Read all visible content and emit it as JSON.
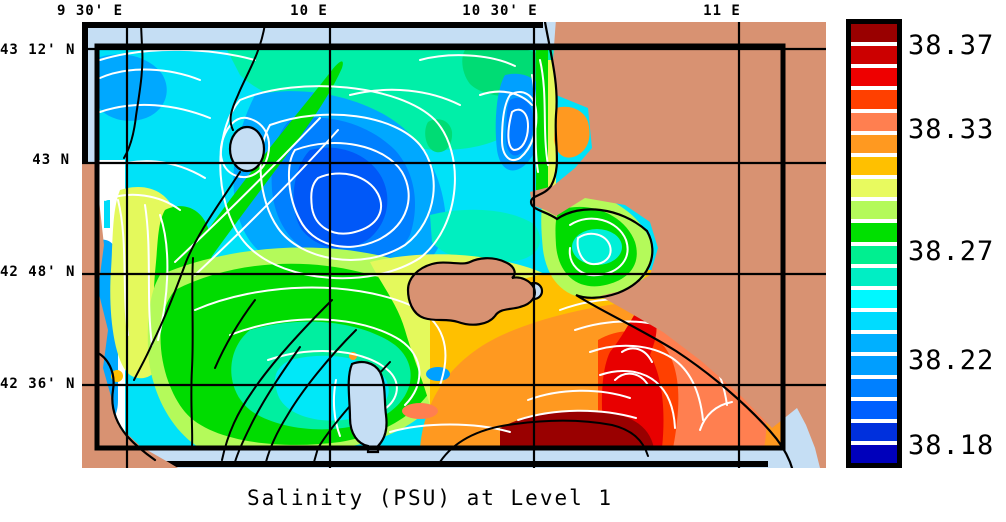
{
  "title": "Salinity (PSU) at Level 1",
  "axes": {
    "top_ticks": [
      "9 30' E",
      "10 E",
      "10 30' E",
      "11 E"
    ],
    "left_ticks": [
      "43 12' N",
      "43 N",
      "42 48' N",
      "42 36' N"
    ]
  },
  "colorbar": {
    "tick_labels": [
      "38.37",
      "38.33",
      "38.27",
      "38.22",
      "38.18"
    ],
    "cell_colors_top_to_bottom": [
      "#990000",
      "#CC0000",
      "#EE0000",
      "#FF4000",
      "#FF7F50",
      "#FF9920",
      "#FFC000",
      "#E8FA5F",
      "#B4FA5A",
      "#00E000",
      "#00EF90",
      "#00EEC4",
      "#00F8FF",
      "#00DCFF",
      "#00B0FF",
      "#009EFF",
      "#0080FF",
      "#0060FF",
      "#0030DD",
      "#0000BB"
    ]
  },
  "map_palette": {
    "land": "#D89272",
    "outside_domain_sea": "#C5DEF4",
    "contour_lines": "#FFFFFF",
    "coastline_and_grid": "#000000"
  },
  "chart_data": {
    "type": "heatmap",
    "title": "Salinity (PSU) at Level 1",
    "variable": "Salinity",
    "units": "PSU",
    "level": "1",
    "x_tick_labels": [
      "9 30' E",
      "10 E",
      "10 30' E",
      "11 E"
    ],
    "y_tick_labels": [
      "43 12' N",
      "43 N",
      "42 48' N",
      "42 36' N"
    ],
    "colorbar_tick_values": [
      38.37,
      38.33,
      38.27,
      38.22,
      38.18
    ],
    "colorbar_n_cells": 20,
    "colorbar_colors_top_to_bottom": [
      "#990000",
      "#CC0000",
      "#EE0000",
      "#FF4000",
      "#FF7F50",
      "#FF9920",
      "#FFC000",
      "#E8FA5F",
      "#B4FA5A",
      "#00E000",
      "#00EF90",
      "#00EEC4",
      "#00F8FF",
      "#00DCFF",
      "#00B0FF",
      "#009EFF",
      "#0080FF",
      "#0060FF",
      "#0030DD",
      "#0000BB"
    ],
    "legend_position": "right",
    "grid": "on",
    "field_summary": "Low salinity (blues, ~38.18-38.24) in a north-central gyre and along the west; mid values (greens/yellows, ~38.26-38.31) in the southwest and center; high salinity (oranges to dark red, ~38.33-38.37) in the southeast near the Tuscan coast; tan land (Tuscany, Elba, Cap Corse) with white contour lines over the field."
  }
}
